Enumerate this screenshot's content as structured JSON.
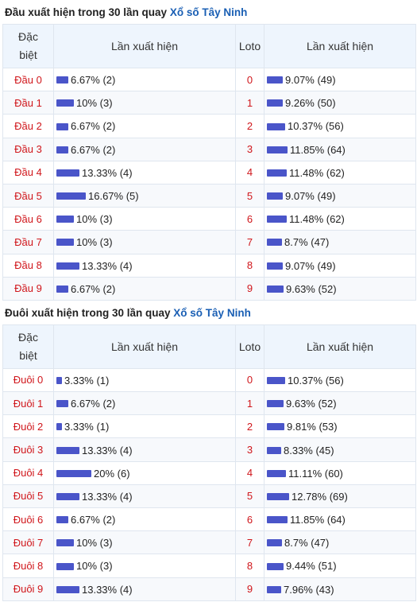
{
  "dau_section": {
    "title_prefix": "Đầu xuất hiện trong 30 lần quay",
    "title_link": "Xổ số Tây Ninh",
    "headers": {
      "dac_biet_line1": "Đặc",
      "dac_biet_line2": "biệt",
      "lan_xuat_hien": "Lần xuất hiện",
      "loto": "Loto",
      "lan_xuat_hien_2": "Lần xuất hiện"
    },
    "rows": [
      {
        "name": "Đầu 0",
        "pct": 6.67,
        "text": "6.67% (2)",
        "loto": "0",
        "loto_pct": 9.07,
        "loto_text": "9.07% (49)"
      },
      {
        "name": "Đầu 1",
        "pct": 10,
        "text": "10% (3)",
        "loto": "1",
        "loto_pct": 9.26,
        "loto_text": "9.26% (50)"
      },
      {
        "name": "Đầu 2",
        "pct": 6.67,
        "text": "6.67% (2)",
        "loto": "2",
        "loto_pct": 10.37,
        "loto_text": "10.37% (56)"
      },
      {
        "name": "Đầu 3",
        "pct": 6.67,
        "text": "6.67% (2)",
        "loto": "3",
        "loto_pct": 11.85,
        "loto_text": "11.85% (64)"
      },
      {
        "name": "Đầu 4",
        "pct": 13.33,
        "text": "13.33% (4)",
        "loto": "4",
        "loto_pct": 11.48,
        "loto_text": "11.48% (62)"
      },
      {
        "name": "Đầu 5",
        "pct": 16.67,
        "text": "16.67% (5)",
        "loto": "5",
        "loto_pct": 9.07,
        "loto_text": "9.07% (49)"
      },
      {
        "name": "Đầu 6",
        "pct": 10,
        "text": "10% (3)",
        "loto": "6",
        "loto_pct": 11.48,
        "loto_text": "11.48% (62)"
      },
      {
        "name": "Đầu 7",
        "pct": 10,
        "text": "10% (3)",
        "loto": "7",
        "loto_pct": 8.7,
        "loto_text": "8.7% (47)"
      },
      {
        "name": "Đầu 8",
        "pct": 13.33,
        "text": "13.33% (4)",
        "loto": "8",
        "loto_pct": 9.07,
        "loto_text": "9.07% (49)"
      },
      {
        "name": "Đầu 9",
        "pct": 6.67,
        "text": "6.67% (2)",
        "loto": "9",
        "loto_pct": 9.63,
        "loto_text": "9.63% (52)"
      }
    ]
  },
  "duoi_section": {
    "title_prefix": "Đuôi xuất hiện trong 30 lần quay",
    "title_link": "Xổ số Tây Ninh",
    "headers": {
      "dac_biet_line1": "Đặc",
      "dac_biet_line2": "biệt",
      "lan_xuat_hien": "Lần xuất hiện",
      "loto": "Loto",
      "lan_xuat_hien_2": "Lần xuất hiện"
    },
    "rows": [
      {
        "name": "Đuôi 0",
        "pct": 3.33,
        "text": "3.33% (1)",
        "loto": "0",
        "loto_pct": 10.37,
        "loto_text": "10.37% (56)"
      },
      {
        "name": "Đuôi 1",
        "pct": 6.67,
        "text": "6.67% (2)",
        "loto": "1",
        "loto_pct": 9.63,
        "loto_text": "9.63% (52)"
      },
      {
        "name": "Đuôi 2",
        "pct": 3.33,
        "text": "3.33% (1)",
        "loto": "2",
        "loto_pct": 9.81,
        "loto_text": "9.81% (53)"
      },
      {
        "name": "Đuôi 3",
        "pct": 13.33,
        "text": "13.33% (4)",
        "loto": "3",
        "loto_pct": 8.33,
        "loto_text": "8.33% (45)"
      },
      {
        "name": "Đuôi 4",
        "pct": 20,
        "text": "20% (6)",
        "loto": "4",
        "loto_pct": 11.11,
        "loto_text": "11.11% (60)"
      },
      {
        "name": "Đuôi 5",
        "pct": 13.33,
        "text": "13.33% (4)",
        "loto": "5",
        "loto_pct": 12.78,
        "loto_text": "12.78% (69)"
      },
      {
        "name": "Đuôi 6",
        "pct": 6.67,
        "text": "6.67% (2)",
        "loto": "6",
        "loto_pct": 11.85,
        "loto_text": "11.85% (64)"
      },
      {
        "name": "Đuôi 7",
        "pct": 10,
        "text": "10% (3)",
        "loto": "7",
        "loto_pct": 8.7,
        "loto_text": "8.7% (47)"
      },
      {
        "name": "Đuôi 8",
        "pct": 10,
        "text": "10% (3)",
        "loto": "8",
        "loto_pct": 9.44,
        "loto_text": "9.44% (51)"
      },
      {
        "name": "Đuôi 9",
        "pct": 13.33,
        "text": "13.33% (4)",
        "loto": "9",
        "loto_pct": 7.96,
        "loto_text": "7.96% (43)"
      }
    ]
  },
  "colors": {
    "bar": "#4a55c9",
    "label_red": "#d0161b",
    "link_blue": "#1a5fb4",
    "header_bg": "#eef5fd"
  }
}
